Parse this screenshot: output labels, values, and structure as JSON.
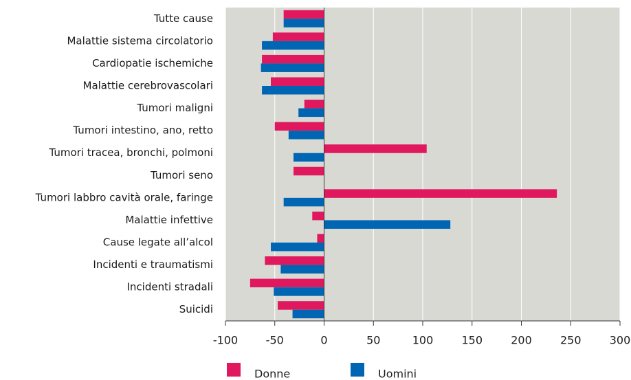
{
  "chart_data": {
    "type": "hbar",
    "categories": [
      "Tutte cause",
      "Malattie sistema circolatorio",
      "Cardiopatie ischemiche",
      "Malattie cerebrovascolari",
      "Tumori maligni",
      "Tumori intestino, ano, retto",
      "Tumori tracea, bronchi, polmoni",
      "Tumori seno",
      "Tumori labbro cavità orale, faringe",
      "Malattie infettive",
      "Cause legate all’alcol",
      "Incidenti e traumatismi",
      "Incidenti stradali",
      "Suicidi"
    ],
    "series": [
      {
        "name": "Donne",
        "color": "#e0185e",
        "values": [
          -41,
          -52,
          -63,
          -54,
          -20,
          -50,
          104,
          -31,
          236,
          -12,
          -7,
          -60,
          -75,
          -47
        ]
      },
      {
        "name": "Uomini",
        "color": "#0066b3",
        "values": [
          -41,
          -63,
          -64,
          -63,
          -26,
          -36,
          -31,
          null,
          -41,
          128,
          -54,
          -44,
          -51,
          -32
        ]
      }
    ],
    "xlim": [
      -100,
      300
    ],
    "xticks": [
      -100,
      -50,
      0,
      50,
      100,
      150,
      200,
      250,
      300
    ],
    "grid": true,
    "legend": "bottom"
  }
}
